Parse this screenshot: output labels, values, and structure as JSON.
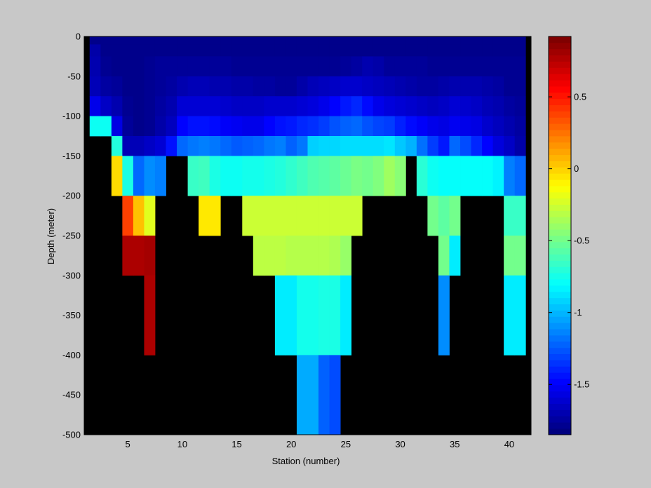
{
  "chart_data": {
    "type": "heatmap",
    "title": "",
    "xlabel": "Station (number)",
    "ylabel": "Depth (meter)",
    "xlim": [
      1,
      42
    ],
    "ylim": [
      -500,
      0
    ],
    "x_ticks": [
      5,
      10,
      15,
      20,
      25,
      30,
      35,
      40
    ],
    "y_ticks": [
      0,
      -50,
      -100,
      -150,
      -200,
      -250,
      -300,
      -350,
      -400,
      -450,
      -500
    ],
    "colorbar": {
      "colormap": "jet",
      "clim": [
        -1.85,
        0.92
      ],
      "ticks": [
        0.5,
        0,
        -0.5,
        -1,
        -1.5
      ]
    },
    "missing_color": "#000000",
    "depth_bins": [
      {
        "top": 0,
        "bottom": -10
      },
      {
        "top": -10,
        "bottom": -25
      },
      {
        "top": -25,
        "bottom": -50
      },
      {
        "top": -50,
        "bottom": -75
      },
      {
        "top": -75,
        "bottom": -100
      },
      {
        "top": -100,
        "bottom": -125
      },
      {
        "top": -125,
        "bottom": -150
      },
      {
        "top": -150,
        "bottom": -200
      },
      {
        "top": -200,
        "bottom": -250
      },
      {
        "top": -250,
        "bottom": -300
      },
      {
        "top": -300,
        "bottom": -400
      },
      {
        "top": -400,
        "bottom": -500
      }
    ],
    "stations": [
      2,
      3,
      4,
      5,
      6,
      7,
      8,
      9,
      10,
      11,
      12,
      13,
      14,
      15,
      16,
      17,
      18,
      19,
      20,
      21,
      22,
      23,
      24,
      25,
      26,
      27,
      28,
      29,
      30,
      31,
      32,
      33,
      34,
      35,
      36,
      37,
      38,
      39,
      40,
      41
    ],
    "values": [
      [
        -1.82,
        -1.82,
        -1.82,
        -1.82,
        -1.82,
        -1.82,
        -1.82,
        -1.82,
        -1.82,
        -1.82,
        -1.82,
        -1.82,
        -1.82,
        -1.82,
        -1.82,
        -1.82,
        -1.82,
        -1.82,
        -1.82,
        -1.82,
        -1.82,
        -1.82,
        -1.82,
        -1.82,
        -1.82,
        -1.82,
        -1.82,
        -1.82,
        -1.82,
        -1.82,
        -1.82,
        -1.82,
        -1.82,
        -1.82,
        -1.82,
        -1.82,
        -1.82,
        -1.82,
        -1.82,
        -1.82
      ],
      [
        -1.74,
        -1.82,
        -1.82,
        -1.82,
        -1.82,
        -1.82,
        -1.82,
        -1.82,
        -1.82,
        -1.82,
        -1.82,
        -1.82,
        -1.82,
        -1.82,
        -1.82,
        -1.82,
        -1.82,
        -1.82,
        -1.82,
        -1.82,
        -1.82,
        -1.82,
        -1.82,
        -1.82,
        -1.82,
        -1.82,
        -1.82,
        -1.82,
        -1.82,
        -1.82,
        -1.82,
        -1.82,
        -1.82,
        -1.82,
        -1.82,
        -1.82,
        -1.82,
        -1.82,
        -1.82,
        -1.82
      ],
      [
        -1.72,
        -1.8,
        -1.82,
        -1.82,
        -1.82,
        -1.8,
        -1.78,
        -1.78,
        -1.78,
        -1.78,
        -1.78,
        -1.78,
        -1.78,
        -1.8,
        -1.8,
        -1.8,
        -1.8,
        -1.8,
        -1.8,
        -1.8,
        -1.8,
        -1.8,
        -1.8,
        -1.78,
        -1.76,
        -1.72,
        -1.74,
        -1.78,
        -1.78,
        -1.78,
        -1.78,
        -1.8,
        -1.8,
        -1.8,
        -1.8,
        -1.8,
        -1.8,
        -1.8,
        -1.8,
        -1.8
      ],
      [
        -1.7,
        -1.76,
        -1.78,
        -1.82,
        -1.82,
        -1.8,
        -1.78,
        -1.76,
        -1.72,
        -1.7,
        -1.7,
        -1.72,
        -1.72,
        -1.74,
        -1.74,
        -1.76,
        -1.76,
        -1.78,
        -1.78,
        -1.74,
        -1.7,
        -1.68,
        -1.66,
        -1.64,
        -1.64,
        -1.66,
        -1.68,
        -1.7,
        -1.72,
        -1.74,
        -1.76,
        -1.76,
        -1.74,
        -1.72,
        -1.72,
        -1.72,
        -1.74,
        -1.76,
        -1.8,
        -1.8
      ],
      [
        -1.56,
        -1.66,
        -1.72,
        -1.8,
        -1.82,
        -1.8,
        -1.76,
        -1.72,
        -1.62,
        -1.62,
        -1.62,
        -1.62,
        -1.64,
        -1.66,
        -1.66,
        -1.66,
        -1.64,
        -1.64,
        -1.64,
        -1.62,
        -1.6,
        -1.56,
        -1.5,
        -1.44,
        -1.4,
        -1.48,
        -1.56,
        -1.6,
        -1.62,
        -1.64,
        -1.66,
        -1.68,
        -1.66,
        -1.62,
        -1.64,
        -1.66,
        -1.7,
        -1.72,
        -1.76,
        -1.78
      ],
      [
        -0.78,
        -0.78,
        -1.58,
        -1.78,
        -1.82,
        -1.8,
        -1.74,
        -1.68,
        -1.5,
        -1.46,
        -1.46,
        -1.48,
        -1.52,
        -1.54,
        -1.56,
        -1.56,
        -1.5,
        -1.46,
        -1.44,
        -1.4,
        -1.38,
        -1.34,
        -1.28,
        -1.24,
        -1.22,
        -1.28,
        -1.32,
        -1.34,
        -1.42,
        -1.48,
        -1.52,
        -1.56,
        -1.58,
        -1.54,
        -1.56,
        -1.58,
        -1.64,
        -1.68,
        -1.72,
        -1.76
      ],
      [
        null,
        null,
        -0.72,
        -1.7,
        -1.7,
        -1.66,
        -1.62,
        -1.46,
        -1.22,
        -1.18,
        -1.16,
        -1.18,
        -1.22,
        -1.26,
        -1.24,
        -1.22,
        -1.18,
        -1.16,
        -1.24,
        -1.18,
        -0.94,
        -0.92,
        -0.92,
        -0.9,
        -0.9,
        -0.9,
        -0.9,
        -0.88,
        -0.96,
        -1.02,
        -1.2,
        -1.34,
        -1.44,
        -1.22,
        -1.3,
        -1.4,
        -1.5,
        -1.6,
        -1.66,
        -1.74
      ],
      [
        null,
        null,
        -0.02,
        -0.74,
        -1.22,
        -1.12,
        -1.16,
        null,
        null,
        -0.66,
        -0.64,
        -0.74,
        -0.78,
        -0.78,
        -0.76,
        -0.76,
        -0.74,
        -0.72,
        -0.68,
        -0.64,
        -0.6,
        -0.58,
        -0.56,
        -0.52,
        -0.48,
        -0.5,
        -0.46,
        -0.38,
        -0.44,
        null,
        -0.7,
        -0.78,
        -0.8,
        -0.8,
        -0.8,
        -0.8,
        -0.8,
        -0.84,
        -1.16,
        -1.22
      ],
      [
        null,
        null,
        null,
        0.4,
        0.05,
        -0.2,
        null,
        null,
        null,
        null,
        -0.06,
        -0.06,
        null,
        null,
        -0.26,
        -0.26,
        -0.26,
        -0.26,
        -0.26,
        -0.26,
        -0.26,
        -0.26,
        -0.26,
        -0.26,
        -0.26,
        null,
        null,
        null,
        null,
        null,
        null,
        -0.5,
        -0.56,
        -0.5,
        null,
        null,
        null,
        null,
        -0.66,
        -0.66
      ],
      [
        null,
        null,
        null,
        0.8,
        0.8,
        0.82,
        null,
        null,
        null,
        null,
        null,
        null,
        null,
        null,
        null,
        -0.3,
        -0.3,
        -0.3,
        -0.32,
        -0.32,
        -0.32,
        -0.32,
        -0.34,
        -0.4,
        null,
        null,
        null,
        null,
        null,
        null,
        null,
        null,
        -0.5,
        -0.86,
        null,
        null,
        null,
        null,
        -0.5,
        -0.5
      ],
      [
        null,
        null,
        null,
        null,
        null,
        0.8,
        null,
        null,
        null,
        null,
        null,
        null,
        null,
        null,
        null,
        null,
        null,
        -0.86,
        -0.86,
        -0.76,
        -0.76,
        -0.74,
        -0.74,
        -0.86,
        null,
        null,
        null,
        null,
        null,
        null,
        null,
        null,
        -1.12,
        null,
        null,
        null,
        null,
        null,
        -0.86,
        -0.86
      ],
      [
        null,
        null,
        null,
        null,
        null,
        null,
        null,
        null,
        null,
        null,
        null,
        null,
        null,
        null,
        null,
        null,
        null,
        null,
        null,
        -1.04,
        -1.04,
        -1.24,
        -1.3,
        null,
        null,
        null,
        null,
        null,
        null,
        null,
        null,
        null,
        null,
        null,
        null,
        null,
        null,
        null,
        null,
        null
      ]
    ]
  }
}
